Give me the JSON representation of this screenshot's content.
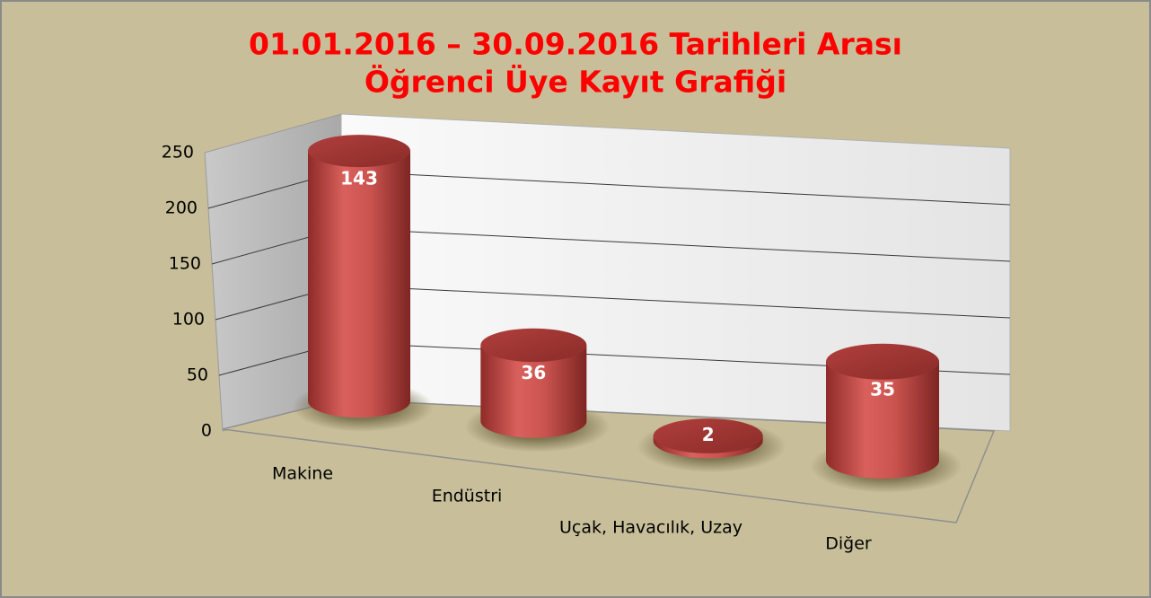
{
  "chart_data": {
    "type": "bar3d",
    "title": "01.01.2016 – 30.09.2016 Tarihleri Arası",
    "subtitle": "Öğrenci Üye Kayıt Grafiği",
    "categories": [
      "Makine",
      "Endüstri",
      "Uçak, Havacılık, Uzay",
      "Diğer"
    ],
    "values": [
      143,
      36,
      2,
      35
    ],
    "color": "#c0504d",
    "ylim": [
      0,
      250
    ],
    "yticks": [
      0,
      50,
      100,
      150,
      200,
      250
    ],
    "grid": true
  }
}
